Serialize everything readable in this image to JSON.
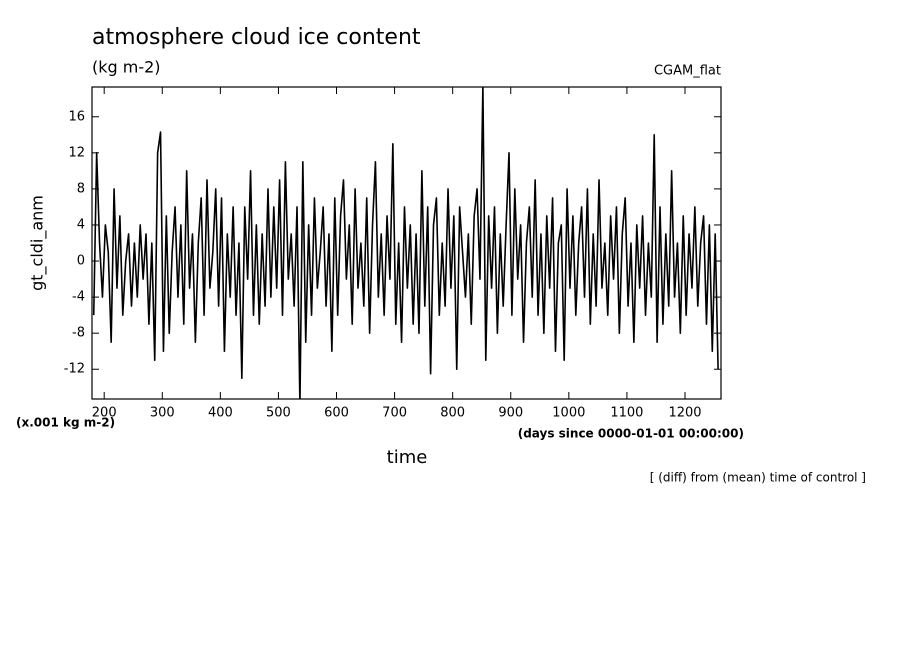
{
  "chart_data": {
    "type": "line",
    "title": "atmosphere cloud ice content",
    "subtitle": "(kg m-2)",
    "annotation_right": "CGAM_flat",
    "y_label": "gt_cldi_anm",
    "y_unit": "(x.001 kg m-2)",
    "x_unit": "(days since 0000-01-01 00:00:00)",
    "x_label": "time",
    "footnote": "[ (diff) from (mean) time of control ]",
    "color": "#000000",
    "xlim": [
      179,
      1262
    ],
    "ylim": [
      -15.3,
      19.3
    ],
    "xticks": [
      200,
      300,
      400,
      500,
      600,
      700,
      800,
      900,
      1000,
      1100,
      1200
    ],
    "yticks": [
      -12,
      -8,
      -4,
      0,
      4,
      8,
      12,
      16
    ],
    "x": [
      182,
      187,
      192,
      197,
      202,
      207,
      212,
      217,
      222,
      227,
      232,
      237,
      242,
      247,
      252,
      257,
      262,
      267,
      272,
      277,
      282,
      287,
      292,
      297,
      302,
      307,
      312,
      317,
      322,
      327,
      332,
      337,
      342,
      347,
      352,
      357,
      362,
      367,
      372,
      377,
      382,
      387,
      392,
      397,
      402,
      407,
      412,
      417,
      422,
      427,
      432,
      437,
      442,
      447,
      452,
      457,
      462,
      467,
      472,
      477,
      482,
      487,
      492,
      497,
      502,
      507,
      512,
      517,
      522,
      527,
      532,
      537,
      542,
      547,
      552,
      557,
      562,
      567,
      572,
      577,
      582,
      587,
      592,
      597,
      602,
      607,
      612,
      617,
      622,
      627,
      632,
      637,
      642,
      647,
      652,
      657,
      662,
      667,
      672,
      677,
      682,
      687,
      692,
      697,
      702,
      707,
      712,
      717,
      722,
      727,
      732,
      737,
      742,
      747,
      752,
      757,
      762,
      767,
      772,
      777,
      782,
      787,
      792,
      797,
      802,
      807,
      812,
      817,
      822,
      827,
      832,
      837,
      842,
      847,
      852,
      857,
      862,
      867,
      872,
      877,
      882,
      887,
      892,
      897,
      902,
      907,
      912,
      917,
      922,
      927,
      932,
      937,
      942,
      947,
      952,
      957,
      962,
      967,
      972,
      977,
      982,
      987,
      992,
      997,
      1002,
      1007,
      1012,
      1017,
      1022,
      1027,
      1032,
      1037,
      1042,
      1047,
      1052,
      1057,
      1062,
      1067,
      1072,
      1077,
      1082,
      1087,
      1092,
      1097,
      1102,
      1107,
      1112,
      1117,
      1122,
      1127,
      1132,
      1137,
      1142,
      1147,
      1152,
      1157,
      1162,
      1167,
      1172,
      1177,
      1182,
      1187,
      1192,
      1197,
      1202,
      1207,
      1212,
      1217,
      1222,
      1227,
      1232,
      1237,
      1242,
      1247,
      1252,
      1257
    ],
    "values": [
      -6,
      12,
      2,
      -4,
      4,
      1,
      -9,
      8,
      -3,
      5,
      -6,
      0,
      3,
      -5,
      2,
      -4,
      4,
      -2,
      3,
      -7,
      2,
      -11,
      12,
      14.3,
      -10,
      5,
      -8,
      1,
      6,
      -4,
      4,
      -7,
      10,
      -3,
      3,
      -9,
      2,
      7,
      -6,
      9,
      -3,
      1,
      8,
      -5,
      7,
      -10,
      3,
      -4,
      6,
      -6,
      2,
      -13,
      6,
      -2,
      10,
      -6,
      4,
      -7,
      3,
      -5,
      8,
      -4,
      6,
      -3,
      9,
      -6,
      11,
      -2,
      3,
      -5,
      6,
      -16,
      11,
      -9,
      4,
      -6,
      7,
      -3,
      1,
      6,
      -5,
      3,
      -10,
      7,
      -6,
      5,
      9,
      -2,
      4,
      -7,
      8,
      -3,
      2,
      -5,
      7,
      -8,
      4,
      11,
      -4,
      3,
      -6,
      5,
      -2,
      13,
      -7,
      2,
      -9,
      6,
      -3,
      4,
      -7,
      3,
      -8,
      10,
      -5,
      6,
      -12.5,
      4,
      7,
      -6,
      2,
      -5,
      8,
      -3,
      5,
      -12,
      6,
      1,
      -4,
      3,
      -7,
      5,
      8,
      -2,
      19.5,
      -11,
      5,
      -3,
      6,
      -8,
      3,
      -5,
      4,
      12,
      -6,
      8,
      -2,
      4,
      -9,
      2,
      6,
      -4,
      9,
      -6,
      3,
      -8,
      5,
      -3,
      7,
      -10,
      2,
      4,
      -11,
      8,
      -3,
      5,
      -6,
      2,
      6,
      -4,
      8,
      -7,
      3,
      -5,
      9,
      -3,
      2,
      -6,
      5,
      -2,
      6,
      -8,
      3,
      7,
      -5,
      2,
      -9,
      4,
      -3,
      5,
      -6,
      2,
      -4,
      14,
      -9,
      6,
      -7,
      3,
      -5,
      10,
      -4,
      2,
      -8,
      5,
      -6,
      3,
      -3,
      6,
      -5,
      2,
      5,
      -7,
      4,
      -10,
      3,
      -12
    ]
  }
}
